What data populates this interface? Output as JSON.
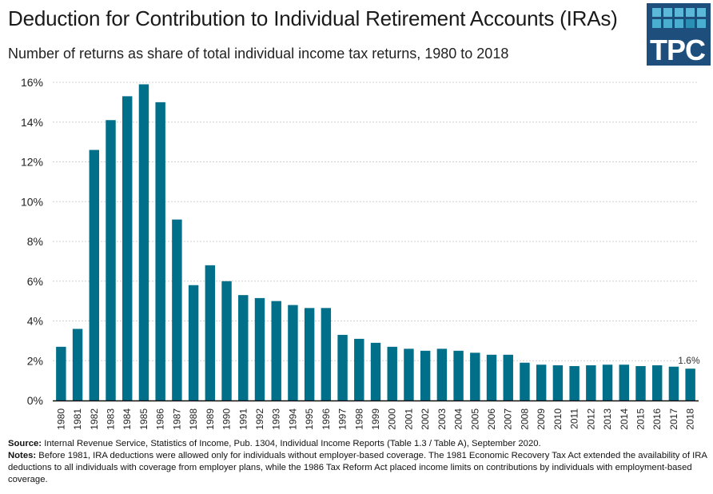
{
  "header": {
    "title": "Deduction for Contribution to Individual Retirement Accounts (IRAs)",
    "subtitle": "Number of returns as share of total individual income tax returns, 1980 to 2018",
    "logo_text": "TPC"
  },
  "colors": {
    "bar": "#006f8a",
    "logo_bg": "#1d4e7c",
    "logo_squares": [
      "#5bb8d8",
      "#5bb8d8",
      "#5bb8d8",
      "#5bb8d8",
      "#5bb8d8",
      "#4aaed0",
      "#4aaed0",
      "#4aaed0",
      "#2a8fb5",
      "#4aaed0"
    ],
    "grid": "#d0d0d0"
  },
  "chart_data": {
    "type": "bar",
    "title": "Deduction for Contribution to Individual Retirement Accounts (IRAs)",
    "subtitle": "Number of returns as share of total individual income tax returns, 1980 to 2018",
    "xlabel": "",
    "ylabel": "",
    "ylim": [
      0,
      16
    ],
    "yticks": [
      0,
      2,
      4,
      6,
      8,
      10,
      12,
      14,
      16
    ],
    "ytick_labels": [
      "0%",
      "2%",
      "4%",
      "6%",
      "8%",
      "10%",
      "12%",
      "14%",
      "16%"
    ],
    "grid": true,
    "legend": "none",
    "categories": [
      "1980",
      "1981",
      "1982",
      "1983",
      "1984",
      "1985",
      "1986",
      "1987",
      "1988",
      "1989",
      "1990",
      "1991",
      "1992",
      "1993",
      "1994",
      "1995",
      "1996",
      "1997",
      "1998",
      "1999",
      "2000",
      "2001",
      "2002",
      "2003",
      "2004",
      "2005",
      "2006",
      "2007",
      "2008",
      "2009",
      "2010",
      "2011",
      "2012",
      "2013",
      "2014",
      "2015",
      "2016",
      "2017",
      "2018"
    ],
    "values": [
      2.7,
      3.6,
      12.6,
      14.1,
      15.3,
      15.9,
      15.0,
      9.1,
      5.8,
      6.8,
      6.0,
      5.3,
      5.15,
      5.0,
      4.8,
      4.65,
      4.65,
      3.3,
      3.1,
      2.9,
      2.7,
      2.6,
      2.5,
      2.6,
      2.5,
      2.4,
      2.3,
      2.3,
      1.9,
      1.8,
      1.77,
      1.73,
      1.77,
      1.8,
      1.8,
      1.73,
      1.77,
      1.7,
      1.6
    ],
    "annotations": [
      {
        "category": "2018",
        "text": "1.6%"
      }
    ]
  },
  "footer": {
    "source_label": "Source:",
    "source_text": " Internal Revenue Service, Statistics of Income, Pub. 1304, Individual Income Reports (Table 1.3 / Table A), September 2020.",
    "notes_label": "Notes:",
    "notes_text": " Before 1981, IRA deductions were allowed only for individuals without employer-based coverage. The 1981 Economic Recovery Tax Act extended the availability of IRA deductions to all individuals with coverage from employer plans, while the 1986 Tax Reform Act placed income limits on contributions by individuals with employment-based coverage."
  }
}
